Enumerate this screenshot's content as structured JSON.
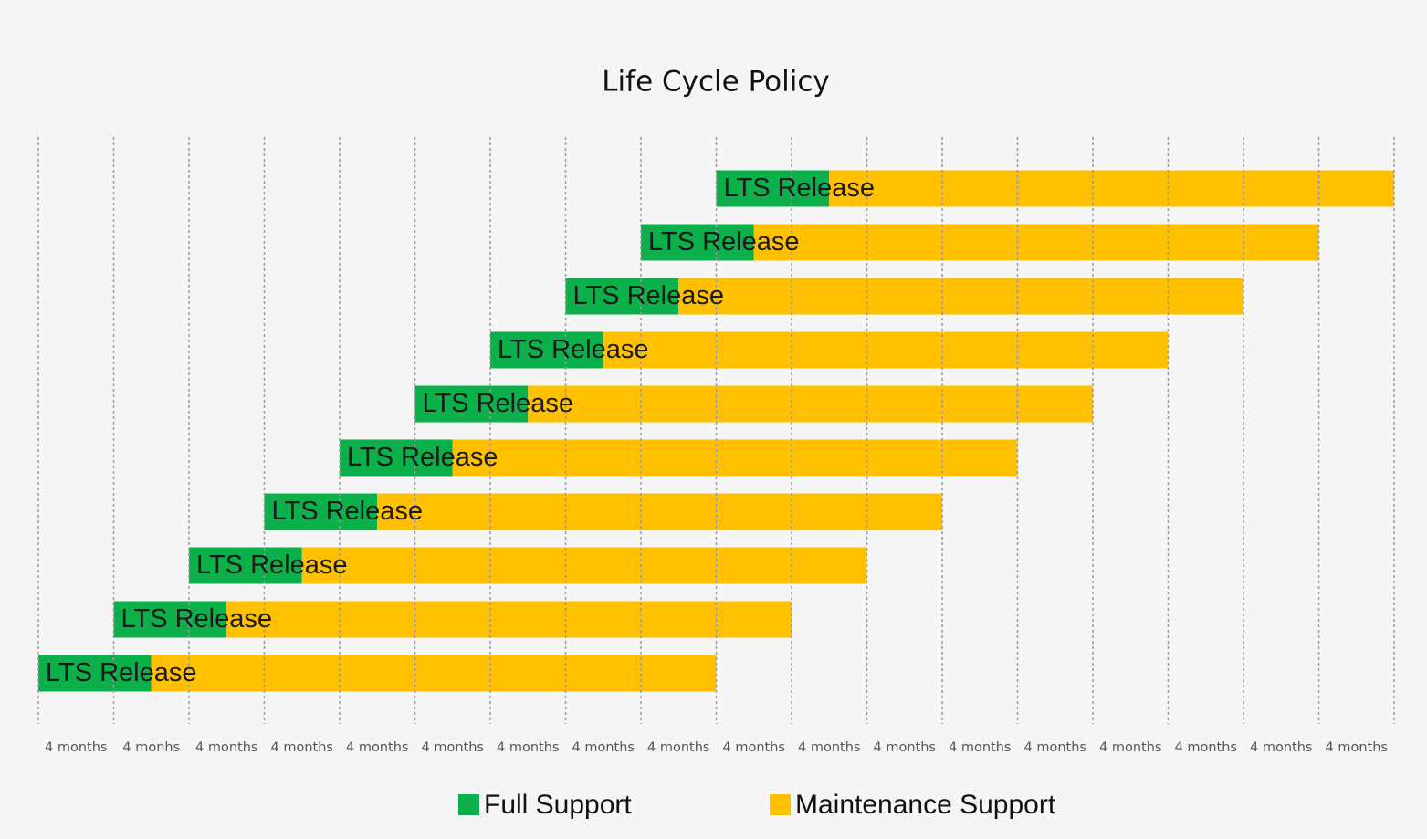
{
  "chart_data": {
    "type": "gantt",
    "title": "Life Cycle Policy",
    "categories": [
      "LTS Release",
      "LTS Release",
      "LTS Release",
      "LTS Release",
      "LTS Release",
      "LTS Release",
      "LTS Release",
      "LTS Release",
      "LTS Release",
      "LTS Release"
    ],
    "starts": [
      0,
      4,
      8,
      12,
      16,
      20,
      24,
      28,
      32,
      36
    ],
    "series": [
      {
        "name": "Full Support",
        "color": "#0cb04a",
        "values": [
          6,
          6,
          6,
          6,
          6,
          6,
          6,
          6,
          6,
          6
        ]
      },
      {
        "name": "Maintenance Support",
        "color": "#ffc000",
        "values": [
          30,
          30,
          30,
          30,
          30,
          30,
          30,
          30,
          30,
          30
        ]
      }
    ],
    "xlim": [
      0,
      72
    ],
    "xticks": [
      0,
      4,
      8,
      12,
      16,
      20,
      24,
      28,
      32,
      36,
      40,
      44,
      48,
      52,
      56,
      60,
      64,
      68,
      72
    ],
    "interval_labels": [
      "4 months",
      "4 monhs",
      "4 months",
      "4 months",
      "4 months",
      "4 months",
      "4 months",
      "4 months",
      "4 months",
      "4 months",
      "4 months",
      "4 months",
      "4 months",
      "4 months",
      "4 months",
      "4 months",
      "4 months",
      "4 months"
    ],
    "grid": true
  }
}
